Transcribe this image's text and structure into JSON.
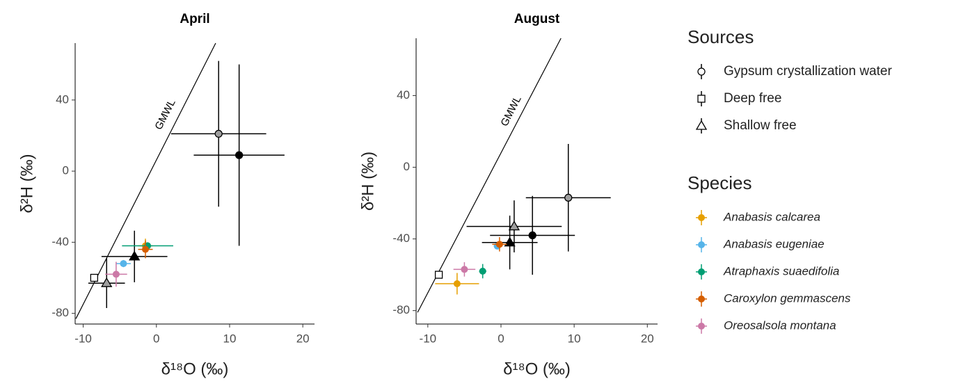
{
  "chart_data": [
    {
      "type": "scatter",
      "title": "April",
      "x_label": "δ¹⁸O (‰)",
      "y_label": "δ²H (‰)",
      "xlim": [
        -11.1,
        21.6
      ],
      "ylim": [
        -86,
        72
      ],
      "xticks": [
        -10,
        0,
        10,
        20
      ],
      "yticks": [
        -80,
        -40,
        0,
        40
      ],
      "grid": false,
      "reference_line": {
        "name": "GMWL",
        "color": "#000000",
        "x": [
          -11,
          8.1
        ],
        "values": [
          -83,
          72
        ]
      },
      "series": [
        {
          "name": "Gypsum crystallization water",
          "marker": "open-circle",
          "color": "#9e9e9e",
          "x": [
            8.5
          ],
          "values": [
            21
          ],
          "x_err": [
            6.5
          ],
          "y_err": [
            41
          ]
        },
        {
          "name": "Gypsum crystallization water",
          "marker": "open-circle",
          "color": "#000000",
          "x": [
            11.3
          ],
          "values": [
            9
          ],
          "x_err": [
            6.2
          ],
          "y_err": [
            51
          ]
        },
        {
          "name": "Deep free",
          "marker": "open-square",
          "color": "#ffffff",
          "x": [
            -8.5
          ],
          "values": [
            -60
          ],
          "x_err": [
            0
          ],
          "y_err": [
            0
          ]
        },
        {
          "name": "Shallow free",
          "marker": "open-triangle",
          "color": "#9e9e9e",
          "x": [
            -6.8
          ],
          "values": [
            -63
          ],
          "x_err": [
            2.5
          ],
          "y_err": [
            14
          ]
        },
        {
          "name": "Shallow free",
          "marker": "open-triangle",
          "color": "#000000",
          "x": [
            -3
          ],
          "values": [
            -48
          ],
          "x_err": [
            4.5
          ],
          "y_err": [
            14.5
          ]
        },
        {
          "name": "Anabasis calcarea",
          "marker": "dot",
          "color": "#E69F00",
          "x": [
            -1.5
          ],
          "values": [
            -42
          ],
          "x_err": [
            1
          ],
          "y_err": [
            4
          ]
        },
        {
          "name": "Anabasis eugeniae",
          "marker": "dot",
          "color": "#56B4E9",
          "x": [
            -4.5
          ],
          "values": [
            -52
          ],
          "x_err": [
            1
          ],
          "y_err": [
            2
          ]
        },
        {
          "name": "Atraphaxis suaedifolia",
          "marker": "dot",
          "color": "#009E73",
          "x": [
            -1.2
          ],
          "values": [
            -42
          ],
          "x_err": [
            3.5
          ],
          "y_err": [
            2
          ]
        },
        {
          "name": "Caroxylon gemmascens",
          "marker": "dot",
          "color": "#D55E00",
          "x": [
            -1.5
          ],
          "values": [
            -44
          ],
          "x_err": [
            1
          ],
          "y_err": [
            5
          ]
        },
        {
          "name": "Oreosalsola montana",
          "marker": "dot",
          "color": "#CC79A7",
          "x": [
            -5.5
          ],
          "values": [
            -58
          ],
          "x_err": [
            1.5
          ],
          "y_err": [
            7
          ]
        }
      ]
    },
    {
      "type": "scatter",
      "title": "August",
      "x_label": "δ¹⁸O (‰)",
      "y_label": "δ²H (‰)",
      "xlim": [
        -11.6,
        21.4
      ],
      "ylim": [
        -87.5,
        72
      ],
      "xticks": [
        -10,
        0,
        10,
        20
      ],
      "yticks": [
        -80,
        -40,
        0,
        40
      ],
      "grid": false,
      "reference_line": {
        "name": "GMWL",
        "color": "#000000",
        "x": [
          -11.4,
          8.2
        ],
        "values": [
          -81,
          72
        ]
      },
      "series": [
        {
          "name": "Gypsum crystallization water",
          "marker": "open-circle",
          "color": "#9e9e9e",
          "x": [
            9.2
          ],
          "values": [
            -17
          ],
          "x_err": [
            5.8
          ],
          "y_err": [
            30
          ]
        },
        {
          "name": "Gypsum crystallization water",
          "marker": "open-circle",
          "color": "#000000",
          "x": [
            4.3
          ],
          "values": [
            -38
          ],
          "x_err": [
            5.8
          ],
          "y_err": [
            22
          ]
        },
        {
          "name": "Deep free",
          "marker": "open-square",
          "color": "#ffffff",
          "x": [
            -8.5
          ],
          "values": [
            -60
          ],
          "x_err": [
            0
          ],
          "y_err": [
            0
          ]
        },
        {
          "name": "Shallow free",
          "marker": "open-triangle",
          "color": "#9e9e9e",
          "x": [
            1.8
          ],
          "values": [
            -33
          ],
          "x_err": [
            6.5
          ],
          "y_err": [
            14.5
          ]
        },
        {
          "name": "Shallow free",
          "marker": "open-triangle",
          "color": "#000000",
          "x": [
            1.2
          ],
          "values": [
            -42
          ],
          "x_err": [
            3.8
          ],
          "y_err": [
            15
          ]
        },
        {
          "name": "Anabasis calcarea",
          "marker": "dot",
          "color": "#E69F00",
          "x": [
            -6
          ],
          "values": [
            -65
          ],
          "x_err": [
            3
          ],
          "y_err": [
            6
          ]
        },
        {
          "name": "Anabasis eugeniae",
          "marker": "dot",
          "color": "#56B4E9",
          "x": [
            -0.5
          ],
          "values": [
            -44
          ],
          "x_err": [
            0.5
          ],
          "y_err": [
            1
          ]
        },
        {
          "name": "Atraphaxis suaedifolia",
          "marker": "dot",
          "color": "#009E73",
          "x": [
            -2.5
          ],
          "values": [
            -58
          ],
          "x_err": [
            0.5
          ],
          "y_err": [
            4
          ]
        },
        {
          "name": "Caroxylon gemmascens",
          "marker": "dot",
          "color": "#D55E00",
          "x": [
            -0.2
          ],
          "values": [
            -43
          ],
          "x_err": [
            1
          ],
          "y_err": [
            4
          ]
        },
        {
          "name": "Oreosalsola montana",
          "marker": "dot",
          "color": "#CC79A7",
          "x": [
            -5
          ],
          "values": [
            -57
          ],
          "x_err": [
            1.5
          ],
          "y_err": [
            4
          ]
        }
      ]
    }
  ],
  "legend_titles": [
    "Sources",
    "Species"
  ]
}
